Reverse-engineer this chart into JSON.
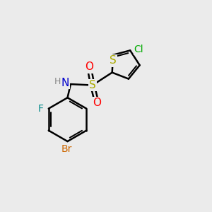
{
  "background_color": "#ebebeb",
  "bond_color": "#000000",
  "bond_width": 1.8,
  "atom_colors": {
    "S_thiophene": "#aaaa00",
    "S_sulfonyl": "#aaaa00",
    "O": "#ff0000",
    "N": "#0000cc",
    "Cl": "#00aa00",
    "F": "#008888",
    "Br": "#cc6600",
    "H": "#888888",
    "C": "#000000"
  },
  "font_size": 10
}
